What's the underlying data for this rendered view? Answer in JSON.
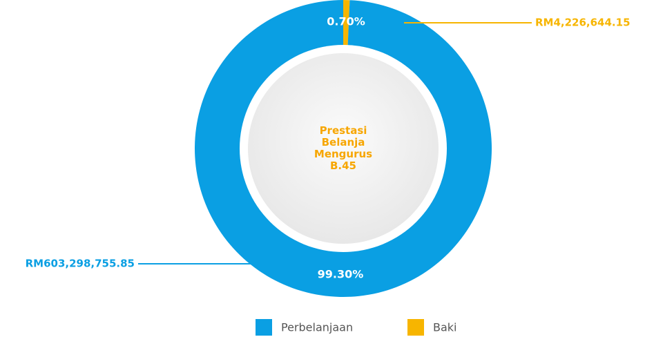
{
  "chart_data": {
    "type": "pie",
    "categories": [
      "Perbelanjaan",
      "Baki"
    ],
    "values": [
      99.3,
      0.7
    ],
    "value_labels": [
      "99.30%",
      "0.70%"
    ],
    "colors": [
      "#0a9fe3",
      "#f7b500"
    ],
    "annotations": [
      "RM603,298,755.85",
      "RM4,226,644.15"
    ],
    "center_label": [
      "Prestasi",
      "Belanja",
      "Mengurus",
      "B.45"
    ],
    "legend": "bottom"
  }
}
